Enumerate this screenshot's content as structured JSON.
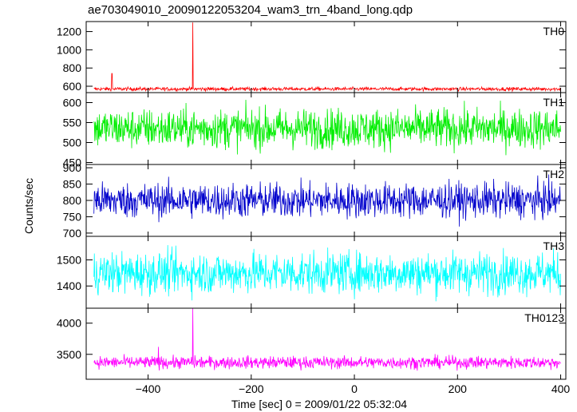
{
  "title": "ae703049010_20090122053204_wam3_trn_4band_long.qdp",
  "xlabel": "Time [sec] 0 = 2009/01/22 05:32:04",
  "ylabel": "Counts/sec",
  "chart_data": {
    "type": "line",
    "xlim": [
      -520,
      410
    ],
    "x_ticks": [
      -400,
      -200,
      0,
      200,
      400
    ],
    "x_tick_labels": [
      "−400",
      "−200",
      "0",
      "200",
      "400"
    ],
    "panels": [
      {
        "name": "TH0",
        "color": "#ff0000",
        "ylim": [
          530,
          1310
        ],
        "y_ticks": [
          600,
          800,
          1000,
          1200
        ],
        "x_range": [
          -505,
          400
        ],
        "baseline": 570,
        "noise": 10,
        "spikes": [
          {
            "x": -313,
            "y": 1300
          },
          {
            "x": -470,
            "y": 740
          }
        ]
      },
      {
        "name": "TH1",
        "color": "#00ee00",
        "ylim": [
          445,
          625
        ],
        "y_ticks": [
          450,
          500,
          550,
          600
        ],
        "x_range": [
          -505,
          400
        ],
        "baseline": 535,
        "noise": 25,
        "spikes": []
      },
      {
        "name": "TH2",
        "color": "#0000cc",
        "ylim": [
          690,
          910
        ],
        "y_ticks": [
          700,
          750,
          800,
          850,
          900
        ],
        "x_range": [
          -505,
          400
        ],
        "baseline": 800,
        "noise": 27,
        "spikes": []
      },
      {
        "name": "TH3",
        "color": "#00ffff",
        "ylim": [
          1315,
          1590
        ],
        "y_ticks": [
          1400,
          1500
        ],
        "x_range": [
          -505,
          400
        ],
        "baseline": 1450,
        "noise": 40,
        "spikes": []
      },
      {
        "name": "TH0123",
        "color": "#ff00ff",
        "ylim": [
          3100,
          4240
        ],
        "y_ticks": [
          3500,
          4000
        ],
        "x_range": [
          -505,
          400
        ],
        "baseline": 3370,
        "noise": 50,
        "spikes": [
          {
            "x": -313,
            "y": 4240
          },
          {
            "x": -380,
            "y": 3620
          }
        ]
      }
    ]
  }
}
